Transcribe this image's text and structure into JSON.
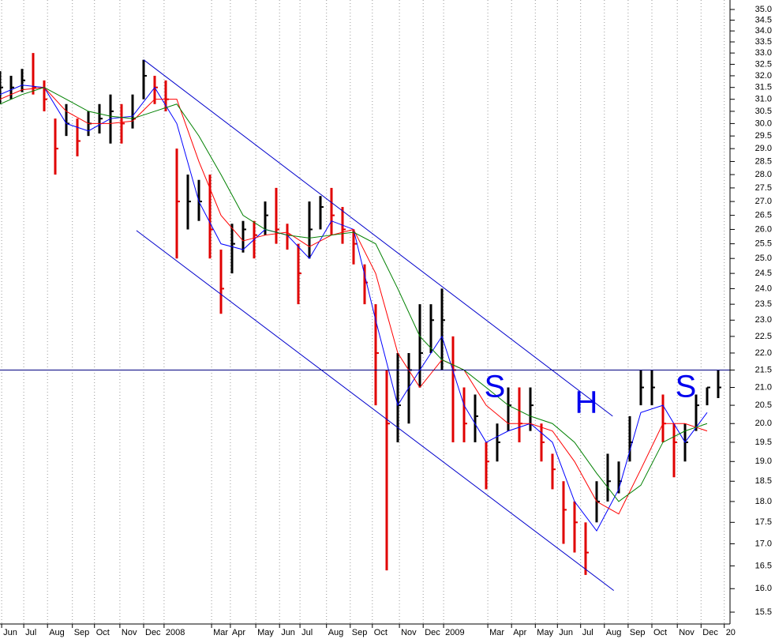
{
  "chart_data": {
    "type": "ohlc",
    "log_scale": true,
    "grid": "x",
    "ylim": [
      15.5,
      35
    ],
    "yticks": [
      {
        "value": 35,
        "label": "35.0"
      },
      34.5,
      {
        "value": 34,
        "label": "34.0"
      },
      33.5,
      {
        "value": 33,
        "label": "33.0"
      },
      32.5,
      {
        "value": 32,
        "label": "32.0"
      },
      31.5,
      {
        "value": 31,
        "label": "31.0"
      },
      30.5,
      {
        "value": 30,
        "label": "30.0"
      },
      29.5,
      {
        "value": 29,
        "label": "29.0"
      },
      28.5,
      {
        "value": 28,
        "label": "28.0"
      },
      27.5,
      {
        "value": 27,
        "label": "27.0"
      },
      26.5,
      {
        "value": 26,
        "label": "26.0"
      },
      25.5,
      {
        "value": 25,
        "label": "25.0"
      },
      24.5,
      {
        "value": 24,
        "label": "24.0"
      },
      23.5,
      {
        "value": 23,
        "label": "23.0"
      },
      22.5,
      {
        "value": 22,
        "label": "22.0"
      },
      21.5,
      {
        "value": 21,
        "label": "21.0"
      },
      20.5,
      {
        "value": 20,
        "label": "20.0"
      },
      19.5,
      {
        "value": 19,
        "label": "19.0"
      },
      18.5,
      {
        "value": 18,
        "label": "18.0"
      },
      17.5,
      {
        "value": 17,
        "label": "17.0"
      },
      16.5,
      {
        "value": 16,
        "label": "16.0"
      },
      15.5
    ],
    "xlim": [
      0,
      132
    ],
    "xticks": [
      {
        "value": 0.3,
        "label": "Jun"
      },
      {
        "value": 4.3,
        "label": "Jul"
      },
      {
        "value": 8.6,
        "label": "Aug"
      },
      {
        "value": 13.1,
        "label": "Sep"
      },
      {
        "value": 17.1,
        "label": "Oct"
      },
      {
        "value": 21.7,
        "label": "Nov"
      },
      {
        "value": 26,
        "label": "Dec"
      },
      {
        "value": 29.7,
        "label": "2008"
      },
      {
        "value": 38.3,
        "label": "Mar"
      },
      {
        "value": 41.7,
        "label": "Apr"
      },
      {
        "value": 46.3,
        "label": "May"
      },
      {
        "value": 50.6,
        "label": "Jun"
      },
      {
        "value": 54.3,
        "label": "Jul"
      },
      {
        "value": 59.1,
        "label": "Aug"
      },
      {
        "value": 63.4,
        "label": "Sep"
      },
      {
        "value": 67.4,
        "label": "Oct"
      },
      {
        "value": 72.3,
        "label": "Nov"
      },
      {
        "value": 76.6,
        "label": "Dec"
      },
      {
        "value": 80.3,
        "label": "2009"
      },
      {
        "value": 88.3,
        "label": "Mar"
      },
      {
        "value": 92.6,
        "label": "Apr"
      },
      {
        "value": 96.9,
        "label": "May"
      },
      {
        "value": 100.9,
        "label": "Jun"
      },
      {
        "value": 105.1,
        "label": "Jul"
      },
      {
        "value": 109.4,
        "label": "Aug"
      },
      {
        "value": 113.7,
        "label": "Sep"
      },
      {
        "value": 118,
        "label": "Oct"
      },
      {
        "value": 122.6,
        "label": "Nov"
      },
      {
        "value": 126.9,
        "label": "Dec"
      },
      {
        "value": 131.1,
        "label": "20"
      }
    ],
    "bars": {
      "up_color": "#000000",
      "down_color": "#e00000",
      "x": [
        0,
        2,
        4,
        6,
        8,
        10,
        12,
        14,
        16,
        18,
        20,
        22,
        24,
        26,
        28,
        30,
        32,
        34,
        36,
        38,
        40,
        42,
        44,
        46,
        48,
        50,
        52,
        54,
        56,
        58,
        60,
        62,
        64,
        66,
        68,
        70,
        72,
        74,
        76,
        78,
        80,
        82,
        84,
        86,
        88,
        90,
        92,
        94,
        96,
        98,
        100,
        102,
        104,
        106,
        108,
        110,
        112,
        114,
        116,
        118,
        120,
        122,
        124,
        126,
        128,
        130
      ],
      "high": [
        32.2,
        32,
        32.3,
        33,
        31.8,
        30.2,
        30.8,
        30.2,
        30.5,
        30.8,
        31.2,
        30.8,
        31.2,
        32.7,
        32,
        31.8,
        29,
        28,
        27.8,
        28,
        25.3,
        26.2,
        26.3,
        26.3,
        27,
        27.5,
        26.2,
        25.5,
        27,
        27.2,
        27.5,
        26.8,
        26,
        24.8,
        23.5,
        21.5,
        22,
        22,
        23.5,
        23.5,
        24,
        22.5,
        21,
        20.8,
        19.5,
        20,
        21,
        21,
        21,
        20,
        19.2,
        18.5,
        18,
        17.5,
        18.5,
        19.2,
        19,
        20.2,
        21.5,
        21.5,
        20.8,
        20,
        20,
        20.8,
        21,
        21.5
      ],
      "low": [
        30.8,
        31,
        31.3,
        31.2,
        30.5,
        28,
        29.5,
        28.7,
        29.5,
        29.6,
        29.2,
        29.2,
        29.8,
        31,
        30.8,
        30.5,
        25,
        26,
        26.3,
        25,
        23.2,
        24.5,
        25.2,
        25,
        25.8,
        25.5,
        25.3,
        23.5,
        25,
        26,
        25.8,
        25.5,
        24.8,
        23.5,
        20.5,
        16.4,
        19.5,
        20,
        21,
        22,
        21.5,
        19.5,
        19.5,
        19.5,
        18.3,
        19,
        19.8,
        19.5,
        19.8,
        19,
        18.3,
        17,
        16.8,
        16.3,
        17.5,
        18,
        18.2,
        19,
        20.5,
        20.5,
        19.5,
        18.6,
        19,
        19.8,
        20.5,
        20.7
      ],
      "close": [
        31.5,
        31.5,
        31.8,
        31.5,
        31,
        29,
        30,
        29.3,
        30,
        30.2,
        30.5,
        30,
        30.2,
        32,
        31.5,
        31,
        27,
        27,
        27,
        26,
        24,
        25.5,
        26,
        25.8,
        26.5,
        26,
        25.8,
        24.5,
        26,
        26.8,
        26.5,
        26,
        25.5,
        24.2,
        22,
        20,
        20.5,
        21.5,
        22,
        23,
        23,
        21.5,
        20,
        20.2,
        19,
        19.5,
        20.5,
        20,
        20.5,
        19.5,
        18.8,
        17.8,
        17.5,
        16.8,
        18,
        18.5,
        18.5,
        19.5,
        21,
        21,
        20,
        19.5,
        19.5,
        20.5,
        21,
        21
      ]
    },
    "series": [
      {
        "color": "#0000ff",
        "x": [
          0,
          4,
          8,
          12,
          16,
          20,
          24,
          28,
          32,
          36,
          40,
          44,
          48,
          52,
          56,
          60,
          64,
          68,
          72,
          76,
          80,
          84,
          88,
          92,
          96,
          100,
          104,
          108,
          112,
          116,
          120,
          124,
          128
        ],
        "values": [
          31.2,
          31.6,
          31.5,
          30,
          29.7,
          30.2,
          30.3,
          31.5,
          30,
          27,
          25.5,
          25.3,
          26,
          25.8,
          25,
          26.3,
          26,
          23,
          20.5,
          21.5,
          22.5,
          20.5,
          19.5,
          19.8,
          20,
          19.5,
          18,
          17.3,
          18.3,
          20.3,
          20.5,
          19.5,
          20.3
        ]
      },
      {
        "color": "#ff0000",
        "x": [
          0,
          4,
          8,
          12,
          16,
          20,
          24,
          28,
          32,
          36,
          40,
          44,
          48,
          52,
          56,
          60,
          64,
          68,
          72,
          76,
          80,
          84,
          88,
          92,
          96,
          100,
          104,
          108,
          112,
          116,
          120,
          124,
          128
        ],
        "values": [
          31,
          31.4,
          31.5,
          30.5,
          30,
          30,
          30.1,
          31,
          31,
          28.5,
          26.5,
          25.6,
          25.8,
          25.9,
          25.4,
          25.8,
          26,
          24.5,
          22,
          21,
          21.8,
          21.5,
          20.5,
          20,
          20,
          19.8,
          19,
          18,
          17.7,
          18.8,
          20,
          20,
          19.8
        ]
      },
      {
        "color": "#008000",
        "x": [
          0,
          4,
          8,
          12,
          16,
          20,
          24,
          28,
          32,
          36,
          40,
          44,
          48,
          52,
          56,
          60,
          64,
          68,
          72,
          76,
          80,
          84,
          88,
          92,
          96,
          100,
          104,
          108,
          112,
          116,
          120,
          124,
          128
        ],
        "values": [
          30.8,
          31.2,
          31.5,
          31,
          30.5,
          30.3,
          30.2,
          30.5,
          30.8,
          29.5,
          28,
          26.5,
          26,
          25.8,
          25.7,
          25.8,
          25.9,
          25.5,
          24,
          22.5,
          21.8,
          21.5,
          21,
          20.5,
          20.2,
          20,
          19.5,
          18.7,
          18,
          18.4,
          19.5,
          19.8,
          20
        ]
      }
    ],
    "trendlines": [
      {
        "color": "#0000cc",
        "x": [
          26,
          110.9
        ],
        "values": [
          32.7,
          20.2
        ]
      },
      {
        "color": "#0000cc",
        "x": [
          24.7,
          111.1
        ],
        "values": [
          25.96,
          15.96
        ]
      }
    ],
    "hlines": [
      {
        "color": "#000080",
        "value": 21.5
      }
    ],
    "annotations": [
      "S",
      "H",
      "S"
    ]
  }
}
